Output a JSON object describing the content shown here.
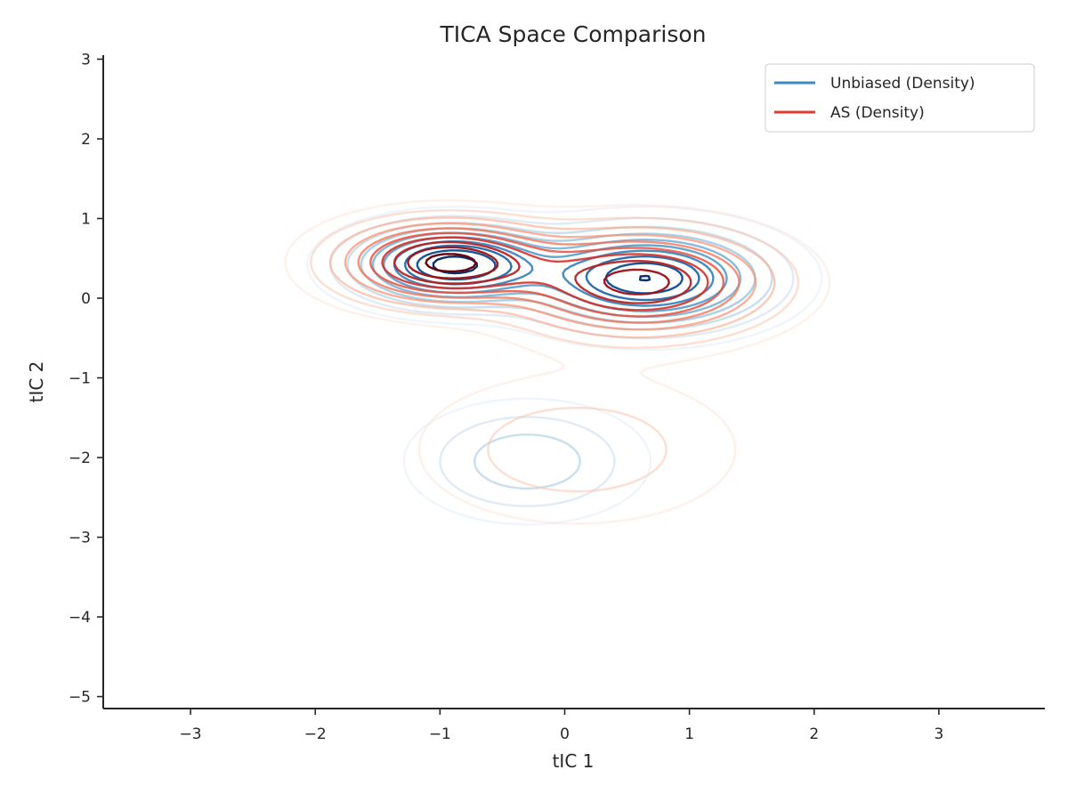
{
  "chart_data": {
    "type": "contour",
    "title": "TICA Space Comparison",
    "xlabel": "tIC 1",
    "ylabel": "tIC 2",
    "xlim": [
      -3.7,
      3.85
    ],
    "ylim": [
      -5.15,
      3.05
    ],
    "xticks": [
      "−3",
      "−2",
      "−1",
      "0",
      "1",
      "2",
      "3"
    ],
    "xtick_values": [
      -3,
      -2,
      -1,
      0,
      1,
      2,
      3
    ],
    "yticks": [
      "3",
      "2",
      "1",
      "0",
      "−1",
      "−2",
      "−3",
      "−4",
      "−5"
    ],
    "ytick_values": [
      3,
      2,
      1,
      0,
      -1,
      -2,
      -3,
      -4,
      -5
    ],
    "grid": false,
    "legend_position": "top-right",
    "series": [
      {
        "name": "Unbiased (Density)",
        "color": "#3b8ac4",
        "colormap": "Blues",
        "levels": 10,
        "modes": [
          {
            "center": [
              -0.9,
              0.42
            ],
            "spread": [
              0.45,
              0.28
            ],
            "weight": 1.0
          },
          {
            "center": [
              0.65,
              0.25
            ],
            "spread": [
              0.55,
              0.35
            ],
            "weight": 0.95
          },
          {
            "center": [
              -0.3,
              -2.05
            ],
            "spread": [
              0.5,
              0.4
            ],
            "weight": 0.25
          }
        ]
      },
      {
        "name": "AS (Density)",
        "color": "#e03b2f",
        "colormap": "Reds",
        "levels": 10,
        "modes": [
          {
            "center": [
              -0.95,
              0.45
            ],
            "spread": [
              0.5,
              0.3
            ],
            "weight": 1.0
          },
          {
            "center": [
              0.6,
              0.2
            ],
            "spread": [
              0.6,
              0.38
            ],
            "weight": 0.9
          },
          {
            "center": [
              0.1,
              -1.9
            ],
            "spread": [
              0.75,
              0.55
            ],
            "weight": 0.15
          }
        ]
      }
    ]
  }
}
